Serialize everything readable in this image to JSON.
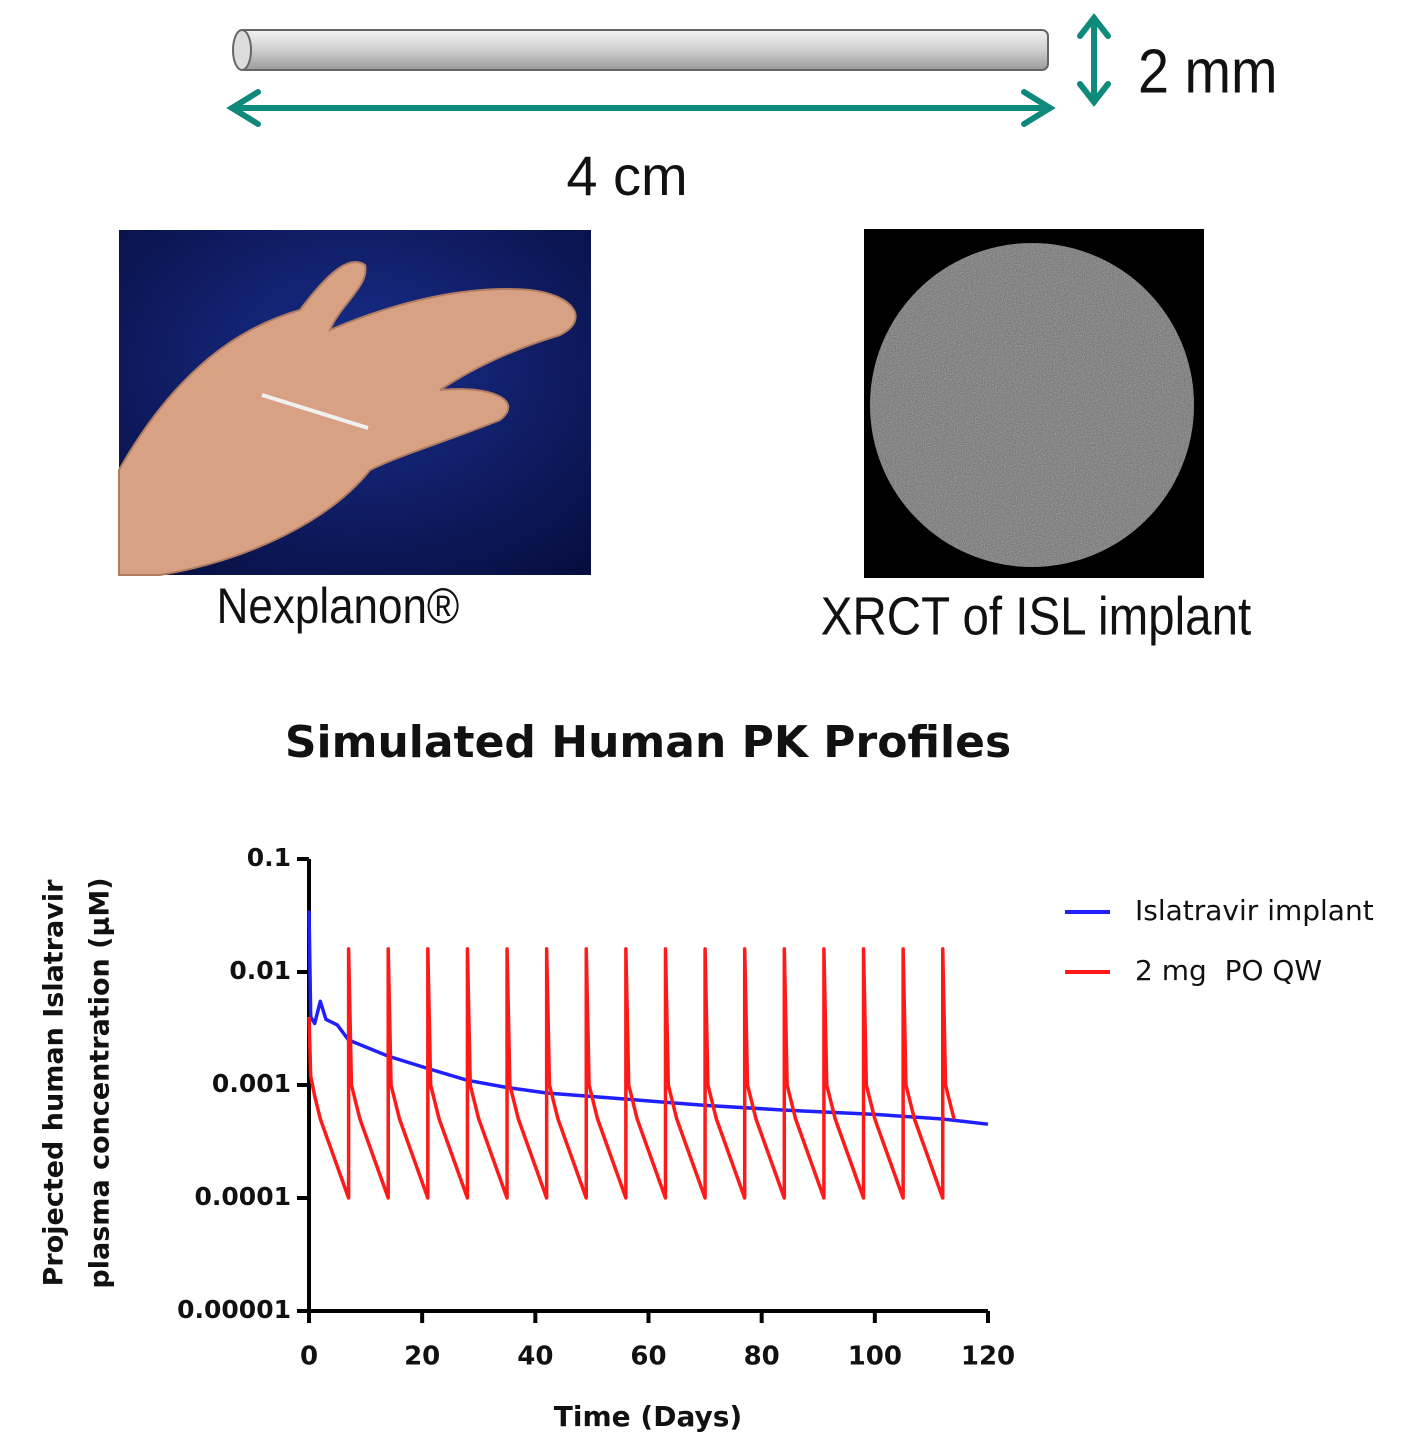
{
  "labels": {
    "height": "2 mm",
    "length": "4 cm",
    "photo_left": "Nexplanon®",
    "photo_right": "XRCT of ISL implant"
  },
  "chart_data": {
    "type": "line",
    "title": "Simulated Human PK Profiles",
    "x_label": "Time (Days)",
    "y_label": [
      "Projected human Islatravir",
      "plasma concentration  (μM)"
    ],
    "xlim": [
      0,
      120
    ],
    "xticks": [
      0,
      20,
      40,
      60,
      80,
      100,
      120
    ],
    "ylim": [
      1e-05,
      0.1
    ],
    "yticks": [
      0.1,
      0.01,
      0.001,
      0.0001,
      1e-05
    ],
    "log_y": true,
    "legend": "right",
    "series": [
      {
        "name": "Islatravir implant",
        "color": "#1f1fff",
        "x": [
          0,
          0.3,
          1,
          2,
          3,
          5,
          7,
          14,
          21,
          28,
          35,
          42,
          56,
          70,
          84,
          100,
          112,
          120
        ],
        "values": [
          0.035,
          0.004,
          0.0035,
          0.0055,
          0.0038,
          0.0034,
          0.0025,
          0.0018,
          0.0014,
          0.0011,
          0.00095,
          0.00085,
          0.00075,
          0.00066,
          0.0006,
          0.00055,
          0.0005,
          0.00045
        ]
      },
      {
        "name": "2 mg  PO QW",
        "color": "#ff1a1a",
        "x": [
          0,
          0.3,
          1,
          2,
          7,
          7,
          7.5,
          9,
          14,
          14,
          14.5,
          16,
          21,
          21,
          21.5,
          23,
          28,
          28,
          28.5,
          30,
          35,
          35,
          35.5,
          37,
          42,
          42,
          42.5,
          44,
          49,
          49,
          49.5,
          51,
          56,
          56,
          56.5,
          58,
          63,
          63,
          63.5,
          65,
          70,
          70,
          70.5,
          72,
          77,
          77,
          77.5,
          79,
          84,
          84,
          84.5,
          86,
          91,
          91,
          91.5,
          93,
          98,
          98,
          98.5,
          100,
          105,
          105,
          105.5,
          107,
          112,
          112,
          112.5,
          114
        ],
        "values": [
          0.004,
          0.0012,
          0.0008,
          0.0005,
          0.0001,
          0.016,
          0.001,
          0.0005,
          0.0001,
          0.016,
          0.001,
          0.0005,
          0.0001,
          0.016,
          0.001,
          0.0005,
          0.0001,
          0.016,
          0.001,
          0.0005,
          0.0001,
          0.016,
          0.001,
          0.0005,
          0.0001,
          0.016,
          0.001,
          0.0005,
          0.0001,
          0.016,
          0.001,
          0.0005,
          0.0001,
          0.016,
          0.001,
          0.0005,
          0.0001,
          0.016,
          0.001,
          0.0005,
          0.0001,
          0.016,
          0.001,
          0.0005,
          0.0001,
          0.016,
          0.001,
          0.0005,
          0.0001,
          0.016,
          0.001,
          0.0005,
          0.0001,
          0.016,
          0.001,
          0.0005,
          0.0001,
          0.016,
          0.001,
          0.0005,
          0.0001,
          0.016,
          0.001,
          0.0005,
          0.0001,
          0.016,
          0.001,
          0.0005
        ]
      }
    ]
  }
}
